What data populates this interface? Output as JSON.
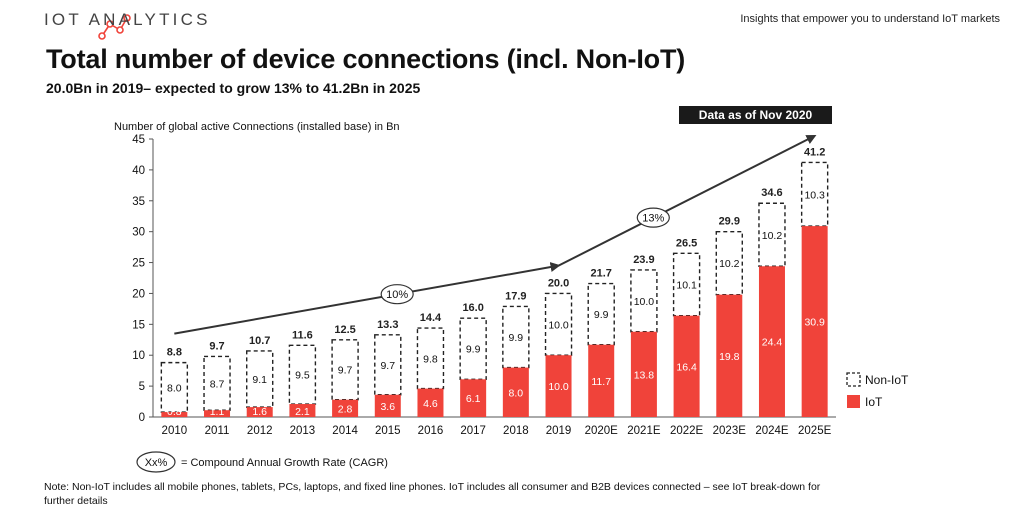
{
  "brand": {
    "name": "IOT ANALYTICS",
    "tagline": "Insights that empower you to understand IoT markets",
    "accent": "#f0433a"
  },
  "badge": "Data as of Nov 2020",
  "note": "Note: Non-IoT includes all mobile phones, tablets, PCs, laptops, and fixed line phones. IoT includes all consumer and B2B devices connected – see IoT break-down for further details",
  "chart_data": {
    "type": "bar",
    "title": "Total number of device connections (incl. Non-IoT)",
    "subtitle": "20.0Bn in 2019– expected to grow 13% to 41.2Bn in 2025",
    "ylabel": "Number of global active Connections (installed base) in Bn",
    "xlabel": "",
    "ylim": [
      0,
      45
    ],
    "yticks": [
      0,
      5,
      10,
      15,
      20,
      25,
      30,
      35,
      40,
      45
    ],
    "categories": [
      "2010",
      "2011",
      "2012",
      "2013",
      "2014",
      "2015",
      "2016",
      "2017",
      "2018",
      "2019",
      "2020E",
      "2021E",
      "2022E",
      "2023E",
      "2024E",
      "2025E"
    ],
    "series": [
      {
        "name": "IoT",
        "color": "#f0433a",
        "values": [
          0.8,
          1.1,
          1.6,
          2.1,
          2.8,
          3.6,
          4.6,
          6.1,
          8.0,
          10.0,
          11.7,
          13.8,
          16.4,
          19.8,
          24.4,
          30.9
        ],
        "labels": [
          "0.8",
          "1.1",
          "1.6",
          "2.1",
          "2.8",
          "3.6",
          "4.6",
          "6.1",
          "8.0",
          "10.0",
          "11.7",
          "13.8",
          "16.4",
          "19.8",
          "24.4",
          "30.9"
        ]
      },
      {
        "name": "Non-IoT",
        "color": "#ffffff",
        "values": [
          8.0,
          8.7,
          9.1,
          9.5,
          9.7,
          9.7,
          9.8,
          9.9,
          9.9,
          10.0,
          9.9,
          10.0,
          10.1,
          10.2,
          10.2,
          10.3
        ],
        "labels": [
          "8.0",
          "8.7",
          "9.1",
          "9.5",
          "9.7",
          "9.7",
          "9.8",
          "9.9",
          "9.9",
          "10.0",
          "9.9",
          "10.0",
          "10.1",
          "10.2",
          "10.2",
          "10.3"
        ]
      }
    ],
    "totals": [
      8.8,
      9.7,
      10.7,
      11.6,
      12.5,
      13.3,
      14.4,
      16.0,
      17.9,
      20.0,
      21.7,
      23.9,
      26.5,
      29.9,
      34.6,
      41.2
    ],
    "total_labels": [
      "8.8",
      "9.7",
      "10.7",
      "11.6",
      "12.5",
      "13.3",
      "14.4",
      "16.0",
      "17.9",
      "20.0",
      "21.7",
      "23.9",
      "26.5",
      "29.9",
      "34.6",
      "41.2"
    ],
    "legend": [
      {
        "name": "Non-IoT",
        "style": "dashed"
      },
      {
        "name": "IoT",
        "style": "solid"
      }
    ],
    "legend_position": "right",
    "trend": [
      {
        "label": "10%",
        "from_category": "2010",
        "to_category": "2019",
        "start_value": 13.5,
        "end_value": 24.5
      },
      {
        "label": "13%",
        "from_category": "2019",
        "to_category": "2025E",
        "start_value": 24.5,
        "end_value": 45.5
      }
    ],
    "cagr_key": {
      "symbol": "Xx%",
      "text": "= Compound Annual Growth Rate (CAGR)"
    }
  }
}
